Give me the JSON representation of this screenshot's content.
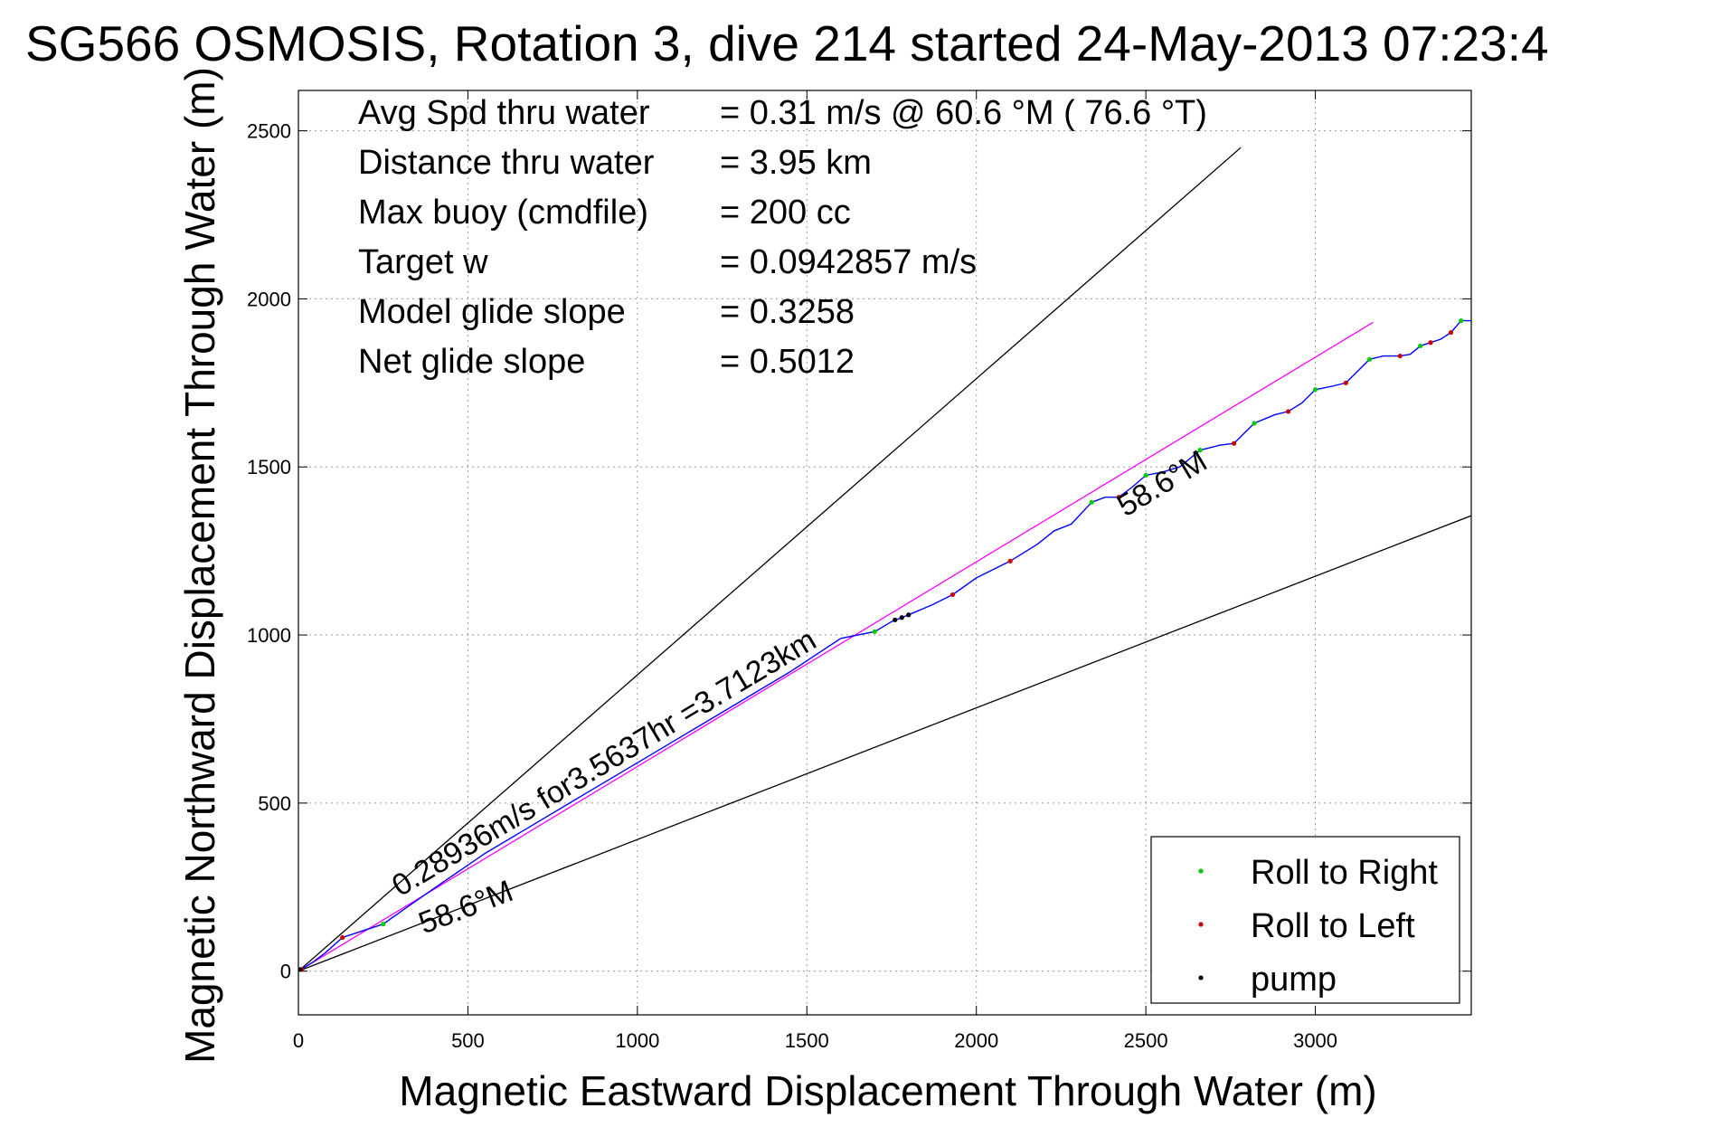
{
  "chart_data": {
    "type": "line",
    "title": "SG566 OSMOSIS, Rotation 3, dive 214 started 24-May-2013 07:23:4",
    "xlabel": "Magnetic Eastward Displacement Through Water (m)",
    "ylabel": "Magnetic Northward Displacement Through Water (m)",
    "xlim": [
      0,
      3460
    ],
    "ylim": [
      -130,
      2620
    ],
    "xticks": [
      0,
      500,
      1000,
      1500,
      2000,
      2500,
      3000
    ],
    "yticks": [
      0,
      500,
      1000,
      1500,
      2000,
      2500
    ],
    "grid": true,
    "info_lines": [
      {
        "label": "Avg Spd thru water",
        "value": "=  0.31 m/s @  60.6 °M ( 76.6 °T)"
      },
      {
        "label": "Distance thru water",
        "value": "=  3.95 km"
      },
      {
        "label": "Max buoy (cmdfile)",
        "value": "= 200 cc"
      },
      {
        "label": "Target w",
        "value": "= 0.0942857 m/s"
      },
      {
        "label": "Model glide slope",
        "value": "= 0.3258"
      },
      {
        "label": "Net glide slope",
        "value": "= 0.5012"
      }
    ],
    "reference_lines": [
      {
        "from": [
          0,
          0
        ],
        "to": [
          2780,
          2450
        ],
        "color": "#000000"
      },
      {
        "from": [
          0,
          0
        ],
        "to": [
          3460,
          1355
        ],
        "color": "#000000"
      },
      {
        "from": [
          0,
          0
        ],
        "to": [
          3170,
          1930
        ],
        "color": "#ff00ff"
      }
    ],
    "track": {
      "color": "#0000ff",
      "points": [
        [
          0,
          0
        ],
        [
          40,
          25
        ],
        [
          80,
          55
        ],
        [
          130,
          100
        ],
        [
          190,
          120
        ],
        [
          250,
          140
        ],
        [
          320,
          190
        ],
        [
          420,
          260
        ],
        [
          550,
          350
        ],
        [
          700,
          440
        ],
        [
          850,
          530
        ],
        [
          1000,
          620
        ],
        [
          1150,
          710
        ],
        [
          1300,
          800
        ],
        [
          1450,
          890
        ],
        [
          1600,
          990
        ],
        [
          1700,
          1010
        ],
        [
          1750,
          1040
        ],
        [
          1800,
          1060
        ],
        [
          1870,
          1090
        ],
        [
          1930,
          1120
        ],
        [
          2000,
          1170
        ],
        [
          2100,
          1220
        ],
        [
          2180,
          1270
        ],
        [
          2230,
          1310
        ],
        [
          2280,
          1330
        ],
        [
          2340,
          1395
        ],
        [
          2380,
          1410
        ],
        [
          2420,
          1410
        ],
        [
          2460,
          1440
        ],
        [
          2500,
          1475
        ],
        [
          2550,
          1485
        ],
        [
          2600,
          1500
        ],
        [
          2660,
          1550
        ],
        [
          2720,
          1565
        ],
        [
          2760,
          1570
        ],
        [
          2820,
          1630
        ],
        [
          2880,
          1655
        ],
        [
          2920,
          1665
        ],
        [
          2960,
          1690
        ],
        [
          3000,
          1730
        ],
        [
          3050,
          1740
        ],
        [
          3090,
          1750
        ],
        [
          3130,
          1790
        ],
        [
          3160,
          1820
        ],
        [
          3200,
          1830
        ],
        [
          3250,
          1830
        ],
        [
          3280,
          1835
        ],
        [
          3310,
          1860
        ],
        [
          3340,
          1870
        ],
        [
          3370,
          1880
        ],
        [
          3400,
          1900
        ],
        [
          3430,
          1935
        ],
        [
          3460,
          1935
        ]
      ]
    },
    "series": [
      {
        "name": "Roll to Right",
        "color": "#00cc00",
        "points": [
          [
            250,
            140
          ],
          [
            1700,
            1010
          ],
          [
            2340,
            1395
          ],
          [
            2500,
            1475
          ],
          [
            2660,
            1550
          ],
          [
            2820,
            1630
          ],
          [
            3000,
            1730
          ],
          [
            3160,
            1820
          ],
          [
            3310,
            1860
          ],
          [
            3430,
            1935
          ]
        ]
      },
      {
        "name": "Roll to Left",
        "color": "#cc0000",
        "points": [
          [
            10,
            5
          ],
          [
            130,
            100
          ],
          [
            1930,
            1120
          ],
          [
            2100,
            1220
          ],
          [
            2420,
            1410
          ],
          [
            2760,
            1570
          ],
          [
            2920,
            1665
          ],
          [
            3090,
            1750
          ],
          [
            3250,
            1830
          ],
          [
            3340,
            1870
          ],
          [
            3400,
            1900
          ]
        ]
      },
      {
        "name": "pump",
        "color": "#000000",
        "points": [
          [
            5,
            5
          ],
          [
            1760,
            1045
          ],
          [
            1780,
            1052
          ],
          [
            1800,
            1060
          ]
        ]
      }
    ],
    "annotations": [
      {
        "text": "0.28936m/s for3.5637hr =3.7123km",
        "x": 300,
        "y": 220,
        "angle_deg": -31
      },
      {
        "text": "58.6°M",
        "x": 370,
        "y": 110,
        "angle_deg": -21
      },
      {
        "text": "58.6°M",
        "x": 2440,
        "y": 1350,
        "angle_deg": -31
      }
    ],
    "legend": {
      "position": "bottom-right",
      "entries": [
        "Roll to Right",
        "Roll to Left",
        "pump"
      ]
    }
  }
}
